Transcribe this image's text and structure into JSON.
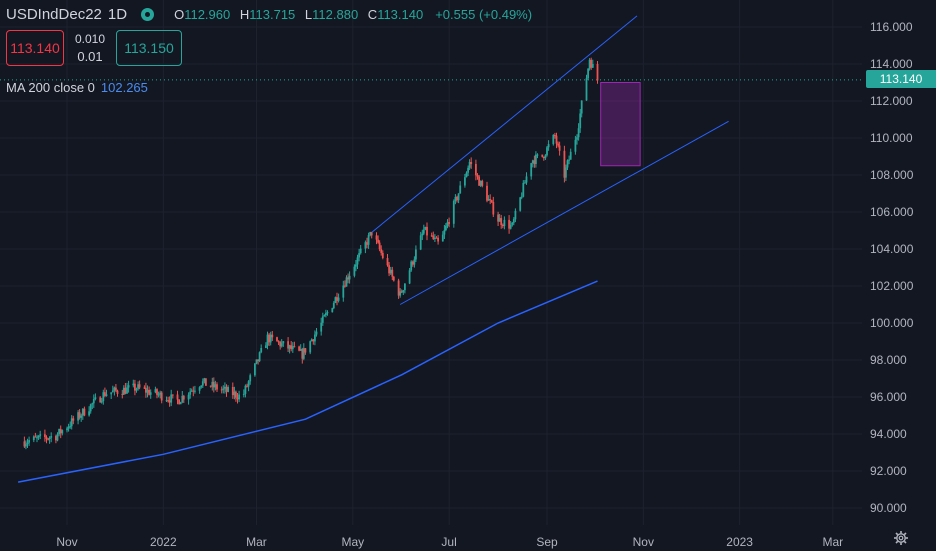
{
  "header": {
    "symbol": "USDIndDec22",
    "interval": "1D",
    "open_label": "O",
    "open": "112.960",
    "high_label": "H",
    "high": "113.715",
    "low_label": "L",
    "low": "112.880",
    "close_label": "C",
    "close": "113.140",
    "change": "+0.555 (+0.49%)"
  },
  "trade_panel": {
    "sell_price": "113.140",
    "spread_top": "0.010",
    "spread_bottom": "0.01",
    "buy_price": "113.150"
  },
  "indicator": {
    "label": "MA 200 close 0",
    "value": "102.265"
  },
  "price_axis": {
    "last_price": "113.140",
    "ticks": [
      "116.000",
      "114.000",
      "112.000",
      "110.000",
      "108.000",
      "106.000",
      "104.000",
      "102.000",
      "100.000",
      "98.000",
      "96.000",
      "94.000",
      "92.000",
      "90.000"
    ]
  },
  "time_axis": {
    "ticks": [
      "Nov",
      "2022",
      "Mar",
      "May",
      "Jul",
      "Sep",
      "Nov",
      "2023",
      "Mar"
    ]
  },
  "colors": {
    "background": "#131722",
    "up": "#26a69a",
    "down": "#ef5350",
    "ma_line": "#2962ff",
    "channel": "#2962ff",
    "target_box": "#9c27b0"
  },
  "icons": {
    "settings": "gear-icon",
    "market_status": "market-open-dot-icon"
  },
  "chart_data": {
    "type": "candlestick",
    "x_range": [
      "2021-10",
      "2023-03"
    ],
    "y_range": [
      89.5,
      117.5
    ],
    "anchor_prices": [
      [
        "2021-10-05",
        93.6
      ],
      [
        "2021-10-25",
        93.9
      ],
      [
        "2021-11-25",
        96.2
      ],
      [
        "2021-12-15",
        96.5
      ],
      [
        "2022-01-10",
        95.8
      ],
      [
        "2022-01-25",
        96.8
      ],
      [
        "2022-02-20",
        96.0
      ],
      [
        "2022-03-08",
        99.2
      ],
      [
        "2022-03-30",
        98.3
      ],
      [
        "2022-04-10",
        99.8
      ],
      [
        "2022-05-05",
        103.6
      ],
      [
        "2022-05-13",
        104.9
      ],
      [
        "2022-05-31",
        101.5
      ],
      [
        "2022-06-15",
        105.0
      ],
      [
        "2022-06-25",
        104.2
      ],
      [
        "2022-07-14",
        108.7
      ],
      [
        "2022-08-01",
        105.6
      ],
      [
        "2022-08-10",
        105.2
      ],
      [
        "2022-08-22",
        108.8
      ],
      [
        "2022-08-29",
        109.0
      ],
      [
        "2022-09-06",
        110.1
      ],
      [
        "2022-09-12",
        108.0
      ],
      [
        "2022-09-20",
        110.3
      ],
      [
        "2022-09-28",
        114.3
      ],
      [
        "2022-10-03",
        113.14
      ]
    ],
    "ma200": [
      [
        "2021-10-01",
        91.4
      ],
      [
        "2022-01-01",
        92.9
      ],
      [
        "2022-04-01",
        94.8
      ],
      [
        "2022-06-01",
        97.2
      ],
      [
        "2022-08-01",
        100.0
      ],
      [
        "2022-10-03",
        102.265
      ]
    ],
    "channel_upper": [
      [
        "2022-05-13",
        104.9
      ],
      [
        "2022-10-28",
        116.6
      ]
    ],
    "channel_lower": [
      [
        "2022-05-31",
        101.0
      ],
      [
        "2022-12-25",
        110.9
      ]
    ],
    "target_box": {
      "x": [
        "2022-10-05",
        "2022-10-30"
      ],
      "y": [
        108.5,
        113.0
      ]
    }
  }
}
